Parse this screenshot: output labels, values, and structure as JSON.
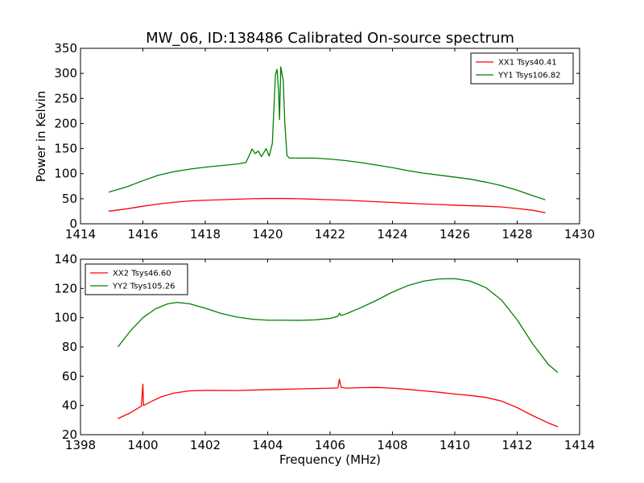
{
  "figure": {
    "title": "MW_06, ID:138486 Calibrated On-source spectrum",
    "ylabel": "Power in Kelvin",
    "xlabel": "Frequency (MHz)"
  },
  "chart_data": [
    {
      "type": "line",
      "xlim": [
        1414,
        1430
      ],
      "ylim": [
        0,
        350
      ],
      "xticks": [
        1414,
        1416,
        1418,
        1420,
        1422,
        1424,
        1426,
        1428,
        1430
      ],
      "yticks": [
        0,
        50,
        100,
        150,
        200,
        250,
        300,
        350
      ],
      "legend_position": "top-right",
      "series": [
        {
          "name": "XX1 Tsys40.41",
          "color": "#ff0000",
          "points": [
            [
              1414.9,
              25
            ],
            [
              1415.5,
              30
            ],
            [
              1416.0,
              35
            ],
            [
              1416.5,
              39.5
            ],
            [
              1417.0,
              43
            ],
            [
              1417.5,
              45.5
            ],
            [
              1418.0,
              47
            ],
            [
              1418.5,
              48
            ],
            [
              1419.0,
              49
            ],
            [
              1419.5,
              50
            ],
            [
              1420.0,
              50.5
            ],
            [
              1420.5,
              50.5
            ],
            [
              1421.0,
              50
            ],
            [
              1421.5,
              49
            ],
            [
              1422.0,
              48
            ],
            [
              1422.5,
              47
            ],
            [
              1423.0,
              45.5
            ],
            [
              1423.5,
              44
            ],
            [
              1424.0,
              42.5
            ],
            [
              1424.5,
              41
            ],
            [
              1425.0,
              39.5
            ],
            [
              1425.5,
              38.5
            ],
            [
              1426.0,
              37
            ],
            [
              1426.5,
              36
            ],
            [
              1427.0,
              35
            ],
            [
              1427.5,
              33.5
            ],
            [
              1428.0,
              30.5
            ],
            [
              1428.5,
              27
            ],
            [
              1428.9,
              22
            ]
          ]
        },
        {
          "name": "YY1 Tsys106.82",
          "color": "#008000",
          "points": [
            [
              1414.9,
              63
            ],
            [
              1415.5,
              74
            ],
            [
              1416.0,
              86
            ],
            [
              1416.5,
              97
            ],
            [
              1417.0,
              104
            ],
            [
              1417.5,
              109
            ],
            [
              1418.0,
              113
            ],
            [
              1418.5,
              116
            ],
            [
              1419.0,
              119
            ],
            [
              1419.3,
              122
            ],
            [
              1419.4,
              135
            ],
            [
              1419.5,
              149
            ],
            [
              1419.6,
              140
            ],
            [
              1419.7,
              145
            ],
            [
              1419.8,
              134
            ],
            [
              1419.95,
              150
            ],
            [
              1420.05,
              135
            ],
            [
              1420.15,
              160
            ],
            [
              1420.25,
              298
            ],
            [
              1420.3,
              308
            ],
            [
              1420.35,
              265
            ],
            [
              1420.38,
              208
            ],
            [
              1420.42,
              313
            ],
            [
              1420.5,
              285
            ],
            [
              1420.55,
              200
            ],
            [
              1420.62,
              136
            ],
            [
              1420.7,
              131
            ],
            [
              1421.5,
              131
            ],
            [
              1422.0,
              129
            ],
            [
              1422.5,
              126
            ],
            [
              1423.0,
              122
            ],
            [
              1423.5,
              117
            ],
            [
              1424.0,
              112
            ],
            [
              1424.5,
              106
            ],
            [
              1425.0,
              101
            ],
            [
              1425.5,
              97
            ],
            [
              1426.0,
              93
            ],
            [
              1426.5,
              89
            ],
            [
              1427.0,
              83
            ],
            [
              1427.5,
              76
            ],
            [
              1428.0,
              67
            ],
            [
              1428.5,
              56
            ],
            [
              1428.9,
              48
            ]
          ]
        }
      ]
    },
    {
      "type": "line",
      "xlim": [
        1398,
        1414
      ],
      "ylim": [
        20,
        140
      ],
      "xticks": [
        1398,
        1400,
        1402,
        1404,
        1406,
        1408,
        1410,
        1412,
        1414
      ],
      "yticks": [
        20,
        40,
        60,
        80,
        100,
        120,
        140
      ],
      "legend_position": "top-left",
      "series": [
        {
          "name": "XX2 Tsys46.60",
          "color": "#ff0000",
          "points": [
            [
              1399.2,
              31
            ],
            [
              1399.6,
              35
            ],
            [
              1399.95,
              39.5
            ],
            [
              1400.0,
              54.5
            ],
            [
              1400.02,
              40
            ],
            [
              1400.3,
              43
            ],
            [
              1400.6,
              46
            ],
            [
              1401.0,
              48.5
            ],
            [
              1401.5,
              50
            ],
            [
              1402.0,
              50.3
            ],
            [
              1403.0,
              50.2
            ],
            [
              1404.0,
              50.8
            ],
            [
              1405.0,
              51.3
            ],
            [
              1406.0,
              51.8
            ],
            [
              1406.25,
              52
            ],
            [
              1406.3,
              58
            ],
            [
              1406.35,
              52.5
            ],
            [
              1406.5,
              51.8
            ],
            [
              1407.0,
              52.2
            ],
            [
              1407.5,
              52.3
            ],
            [
              1408.0,
              51.8
            ],
            [
              1408.5,
              51
            ],
            [
              1409.0,
              50
            ],
            [
              1409.5,
              49
            ],
            [
              1410.0,
              47.8
            ],
            [
              1410.5,
              46.8
            ],
            [
              1411.0,
              45.5
            ],
            [
              1411.5,
              43
            ],
            [
              1412.0,
              38.5
            ],
            [
              1412.5,
              33
            ],
            [
              1413.0,
              28
            ],
            [
              1413.3,
              25.5
            ]
          ]
        },
        {
          "name": "YY2 Tsys105.26",
          "color": "#008000",
          "points": [
            [
              1399.2,
              80
            ],
            [
              1399.6,
              91
            ],
            [
              1400.0,
              100
            ],
            [
              1400.4,
              106
            ],
            [
              1400.8,
              109.5
            ],
            [
              1401.1,
              110.5
            ],
            [
              1401.5,
              109.5
            ],
            [
              1402.0,
              106.5
            ],
            [
              1402.5,
              103
            ],
            [
              1403.0,
              100.5
            ],
            [
              1403.5,
              99
            ],
            [
              1404.0,
              98.3
            ],
            [
              1404.5,
              98.3
            ],
            [
              1405.0,
              98.2
            ],
            [
              1405.5,
              98.5
            ],
            [
              1406.0,
              99.5
            ],
            [
              1406.25,
              101
            ],
            [
              1406.3,
              103
            ],
            [
              1406.35,
              101.5
            ],
            [
              1406.5,
              102.5
            ],
            [
              1407.0,
              107
            ],
            [
              1407.5,
              112
            ],
            [
              1408.0,
              117.5
            ],
            [
              1408.5,
              122
            ],
            [
              1409.0,
              125
            ],
            [
              1409.5,
              126.5
            ],
            [
              1410.0,
              126.7
            ],
            [
              1410.5,
              125
            ],
            [
              1411.0,
              120.5
            ],
            [
              1411.5,
              112
            ],
            [
              1412.0,
              98.5
            ],
            [
              1412.5,
              82
            ],
            [
              1413.0,
              68
            ],
            [
              1413.3,
              62.5
            ]
          ]
        }
      ]
    }
  ]
}
